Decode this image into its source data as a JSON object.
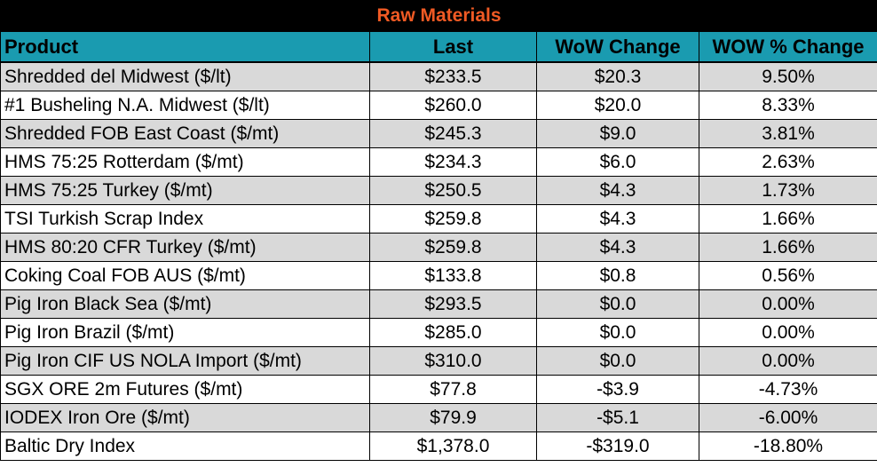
{
  "chart_data": {
    "type": "table",
    "title": "Raw Materials",
    "columns": [
      "Product",
      "Last",
      "WoW Change",
      "WOW % Change"
    ],
    "rows": [
      [
        "Shredded del  Midwest ($/lt)",
        "$233.5",
        "$20.3",
        "9.50%"
      ],
      [
        "#1 Busheling N.A. Midwest ($/lt)",
        "$260.0",
        "$20.0",
        "8.33%"
      ],
      [
        "Shredded FOB East Coast ($/mt)",
        "$245.3",
        "$9.0",
        "3.81%"
      ],
      [
        "HMS 75:25 Rotterdam ($/mt)",
        "$234.3",
        "$6.0",
        "2.63%"
      ],
      [
        "HMS 75:25 Turkey ($/mt)",
        "$250.5",
        "$4.3",
        "1.73%"
      ],
      [
        "TSI Turkish Scrap Index",
        "$259.8",
        "$4.3",
        "1.66%"
      ],
      [
        "HMS 80:20 CFR Turkey ($/mt)",
        "$259.8",
        "$4.3",
        "1.66%"
      ],
      [
        "Coking Coal FOB AUS ($/mt)",
        "$133.8",
        "$0.8",
        "0.56%"
      ],
      [
        "Pig Iron Black Sea ($/mt)",
        "$293.5",
        "$0.0",
        "0.00%"
      ],
      [
        "Pig Iron Brazil ($/mt)",
        "$285.0",
        "$0.0",
        "0.00%"
      ],
      [
        "Pig Iron CIF US NOLA Import ($/mt)",
        "$310.0",
        "$0.0",
        "0.00%"
      ],
      [
        "SGX ORE 2m Futures ($/mt)",
        "$77.8",
        "-$3.9",
        "-4.73%"
      ],
      [
        "IODEX  Iron Ore ($/mt)",
        "$79.9",
        "-$5.1",
        "-6.00%"
      ],
      [
        "Baltic Dry Index",
        "$1,378.0",
        "-$319.0",
        "-18.80%"
      ]
    ]
  },
  "colors": {
    "title_bg": "#000000",
    "title_text": "#f05a24",
    "header_bg": "#1a9bb0",
    "row_shade": "#d9d9d9",
    "row_plain": "#ffffff"
  }
}
